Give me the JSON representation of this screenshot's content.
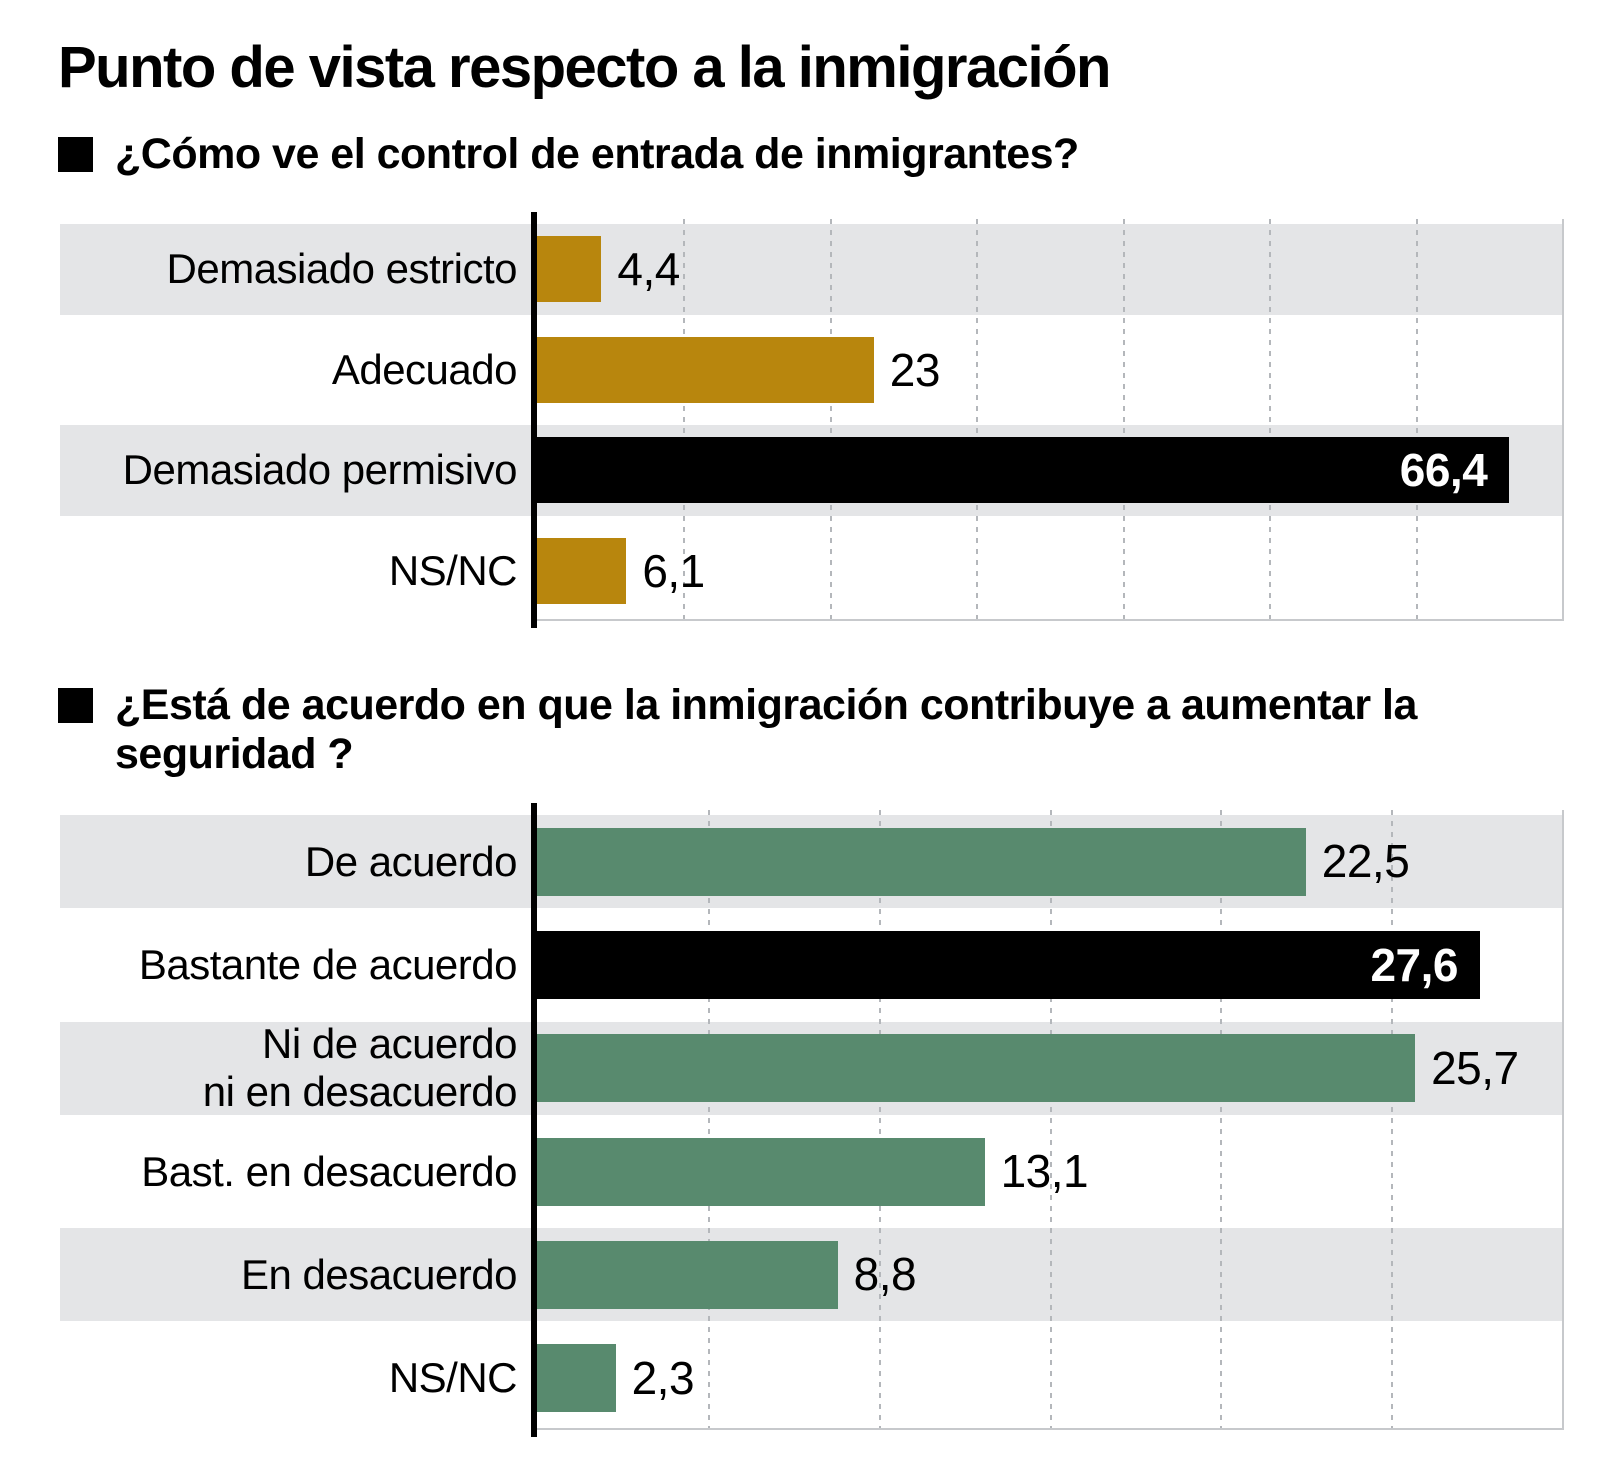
{
  "title": "Punto de vista respecto a la inmigración",
  "colors": {
    "background": "#FFFFFF",
    "text": "#000000",
    "gold_bar": "#B8860D",
    "green_bar": "#588A6E",
    "highlight_bar": "#000000",
    "highlight_value_text": "#FFFFFF",
    "row_band": "#E4E5E7",
    "gridline": "#B4B7BB",
    "plot_border": "#C7C9CC"
  },
  "chart_data": [
    {
      "type": "bar",
      "orientation": "horizontal",
      "title": "¿Cómo ve el control de entrada de inmigrantes?",
      "categories": [
        "Demasiado estricto",
        "Adecuado",
        "Demasiado permisivo",
        "NS/NC"
      ],
      "values": [
        4.4,
        23,
        66.4,
        6.1
      ],
      "value_labels": [
        "4,4",
        "23",
        "66,4",
        "6,1"
      ],
      "highlight_index": 2,
      "bar_color": "#B8860D",
      "highlight_color": "#000000",
      "xlim": [
        0,
        70
      ],
      "grid_interval": 10,
      "grid_style": "dashed-vertical",
      "legend": "none"
    },
    {
      "type": "bar",
      "orientation": "horizontal",
      "title": "¿Está de acuerdo en que la inmigración contribuye a aumentar la\nseguridad ?",
      "categories": [
        "De acuerdo",
        "Bastante de acuerdo",
        "Ni de acuerdo\nni en desacuerdo",
        "Bast. en desacuerdo",
        "En desacuerdo",
        "NS/NC"
      ],
      "values": [
        22.5,
        27.6,
        25.7,
        13.1,
        8.8,
        2.3
      ],
      "value_labels": [
        "22,5",
        "27,6",
        "25,7",
        "13,1",
        "8,8",
        "2,3"
      ],
      "highlight_index": 1,
      "bar_color": "#588A6E",
      "highlight_color": "#000000",
      "xlim": [
        0,
        30
      ],
      "grid_interval": 5,
      "grid_style": "dashed-vertical",
      "legend": "none"
    }
  ]
}
